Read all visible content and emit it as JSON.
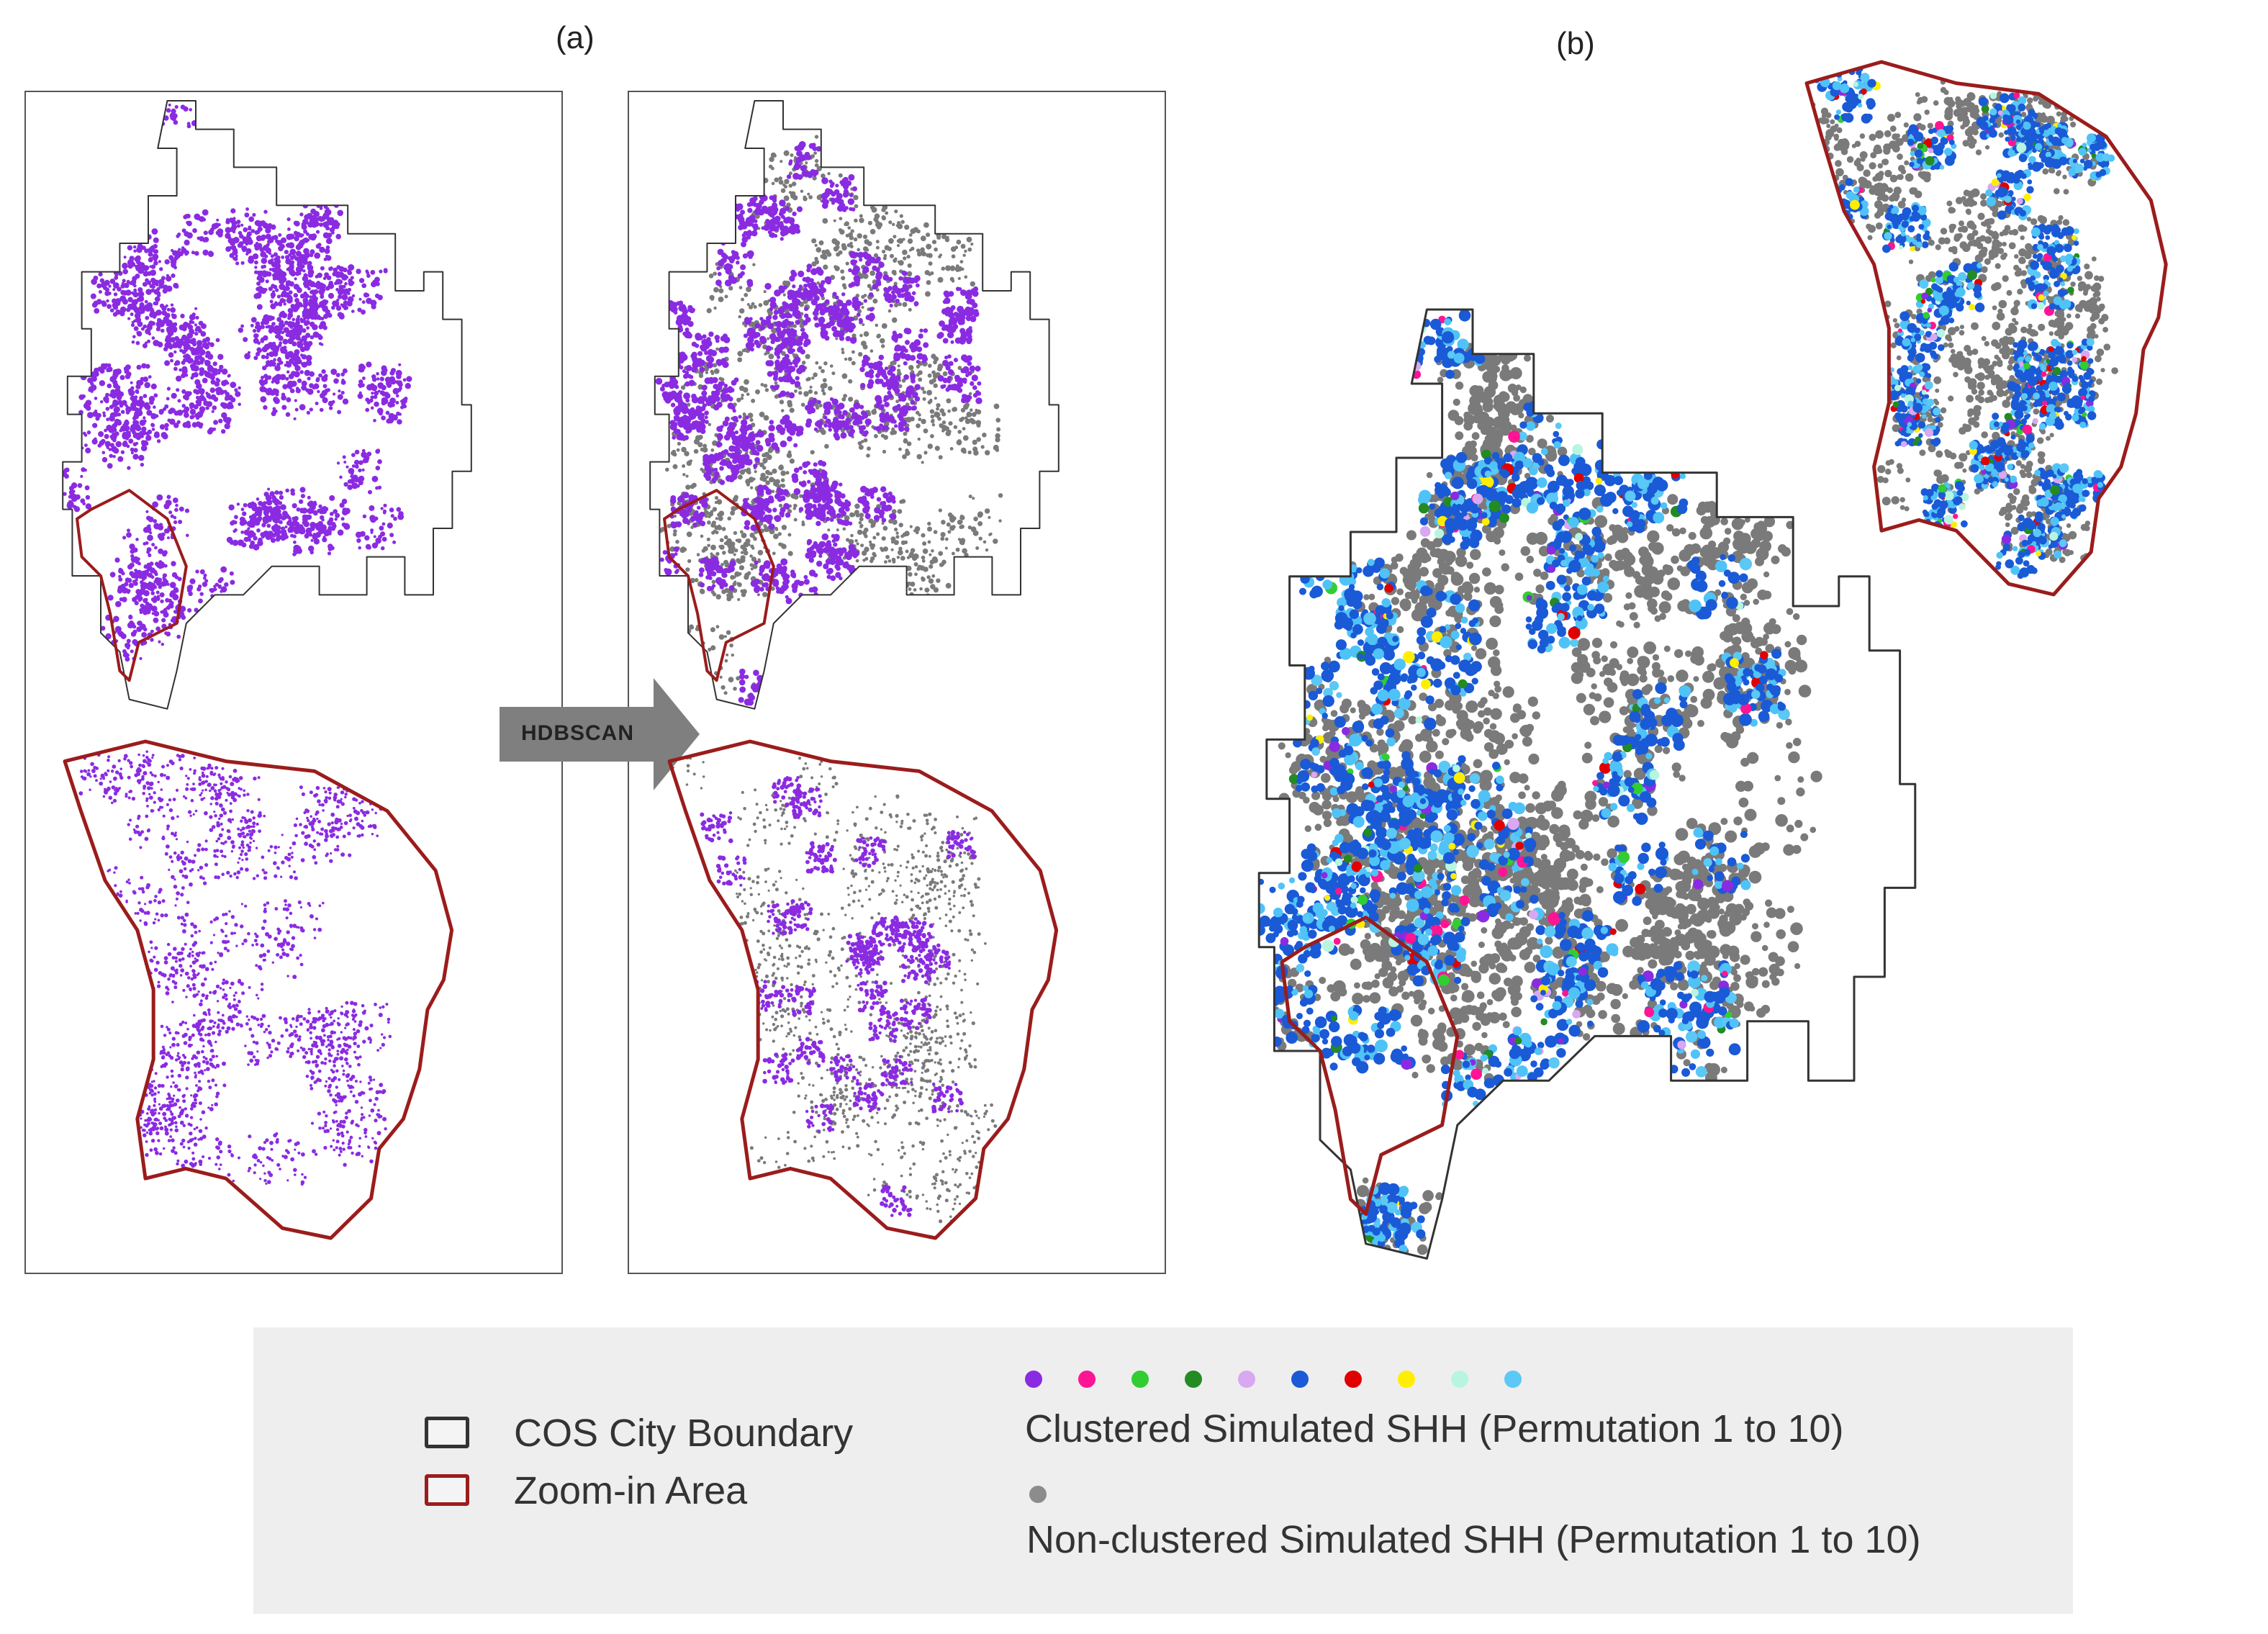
{
  "panels": {
    "a_label": "(a)",
    "b_label": "(b)"
  },
  "process_arrow": {
    "label": "HDBSCAN"
  },
  "colors": {
    "city_boundary": "#333333",
    "zoom_boundary": "#9b1c1c",
    "purple": "#8a2be2",
    "gray": "#7a7a7a",
    "blue": "#1a5ad6",
    "light_blue": "#4fc3f7",
    "arrow": "#7f7f7f",
    "legend_bg": "#eeeeee"
  },
  "legend": {
    "city_boundary_label": "COS City Boundary",
    "zoom_area_label": "Zoom-in Area",
    "clustered_label": "Clustered Simulated SHH (Permutation 1 to 10)",
    "nonclustered_label": "Non-clustered Simulated SHH (Permutation 1 to 10)",
    "permutation_colors": [
      "#8a2be2",
      "#ff1493",
      "#32cd32",
      "#228b22",
      "#d8a8f0",
      "#1a5ad6",
      "#e00000",
      "#ffee00",
      "#b8f5e0",
      "#5bc8f5"
    ],
    "nonclustered_color": "#8c8c8c"
  }
}
